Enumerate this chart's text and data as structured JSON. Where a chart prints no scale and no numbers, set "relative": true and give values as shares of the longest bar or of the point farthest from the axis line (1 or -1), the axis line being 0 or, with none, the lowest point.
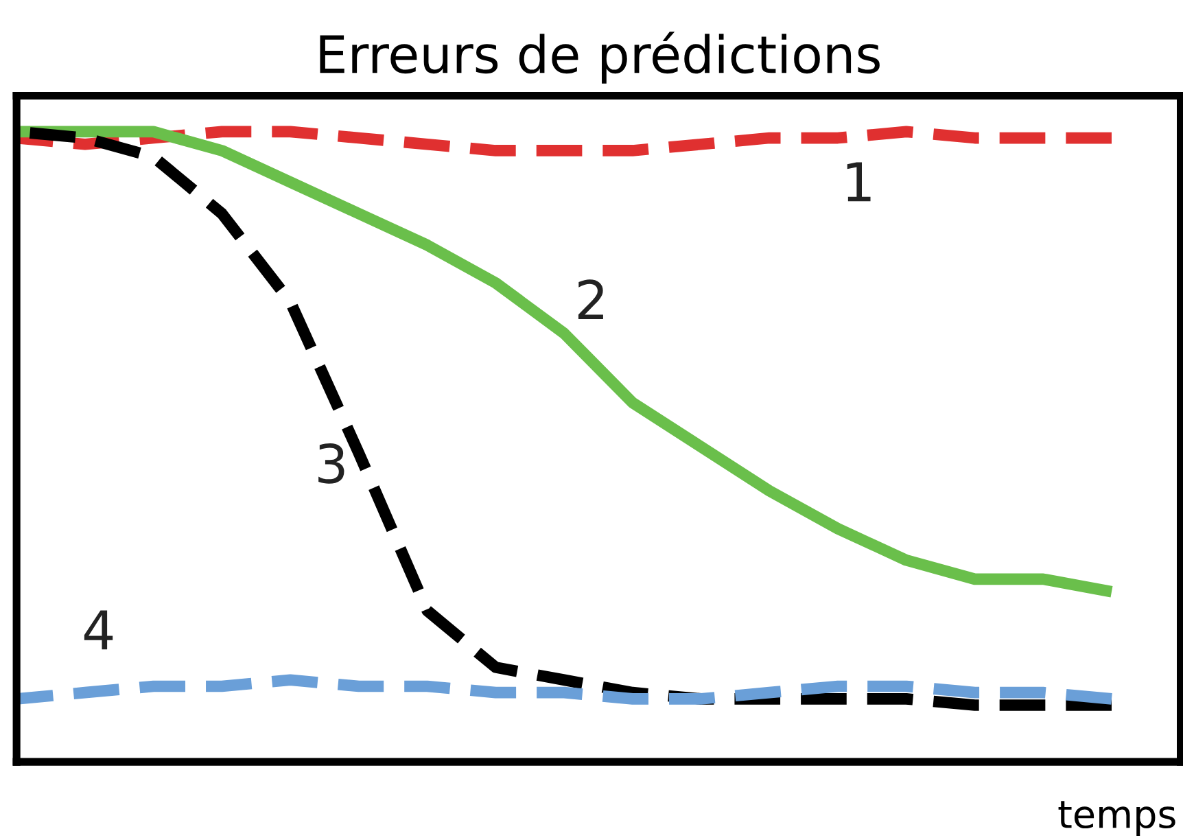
{
  "chart_data": {
    "type": "line",
    "title": "Erreurs de prédictions",
    "xlabel": "temps",
    "relative": true,
    "categories": [
      null,
      null,
      null,
      null,
      null,
      null,
      null,
      null,
      null,
      null,
      null,
      null,
      null,
      null,
      null,
      null,
      null
    ],
    "series": [
      {
        "name": "1",
        "color": "#e03030",
        "line_style": "dashed",
        "values": [
          0.99,
          0.98,
          0.99,
          1.0,
          1.0,
          0.99,
          0.98,
          0.97,
          0.97,
          0.97,
          0.98,
          0.99,
          0.99,
          1.0,
          0.99,
          0.99,
          0.99
        ]
      },
      {
        "name": "2",
        "color": "#6abf4b",
        "line_style": "solid",
        "values": [
          1.0,
          1.0,
          1.0,
          0.97,
          0.92,
          0.87,
          0.82,
          0.76,
          0.68,
          0.57,
          0.5,
          0.43,
          0.37,
          0.32,
          0.29,
          0.29,
          0.27
        ]
      },
      {
        "name": "3",
        "color": "#000000",
        "line_style": "dashed",
        "values": [
          1.0,
          0.99,
          0.96,
          0.87,
          0.73,
          0.49,
          0.24,
          0.15,
          0.13,
          0.11,
          0.1,
          0.1,
          0.1,
          0.1,
          0.09,
          0.09,
          0.09
        ]
      },
      {
        "name": "4",
        "color": "#6a9fd8",
        "line_style": "dashed",
        "values": [
          0.1,
          0.11,
          0.12,
          0.12,
          0.13,
          0.12,
          0.12,
          0.11,
          0.11,
          0.1,
          0.1,
          0.11,
          0.12,
          0.12,
          0.11,
          0.11,
          0.1
        ]
      }
    ]
  }
}
